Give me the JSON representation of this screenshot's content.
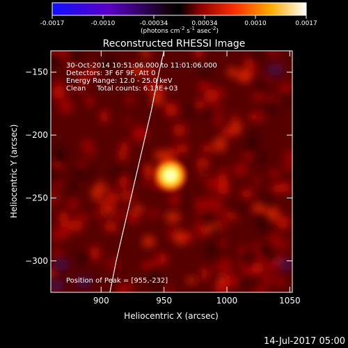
{
  "title": "Reconstructed RHESSI Image",
  "colorbar": {
    "ticks": [
      "-0.0017",
      "-0.0010",
      "-0.00034",
      "0.00034",
      "0.0010",
      "0.0017"
    ],
    "units_html": "(photons cm<tspan baseline-shift='super' font-size='7'>-2</tspan> s<tspan baseline-shift='super' font-size='7'>-1</tspan> asec<tspan baseline-shift='super' font-size='7'>-2</tspan>)"
  },
  "annotations": {
    "time_range": "30-Oct-2014 10:51:06.000 to 11:01:06.000",
    "detectors": "Detectors: 3F 6F 9F, Att 0",
    "energy": "Energy Range: 12.0 - 25.0 keV",
    "method": "Clean     Total counts: 6.13E+03",
    "peak": "Position of Peak = [955,-232]"
  },
  "footer_timestamp": "14-Jul-2017 05:00",
  "chart_data": {
    "type": "heatmap",
    "title": "Reconstructed RHESSI Image",
    "xlabel": "Heliocentric X (arcsec)",
    "ylabel": "Heliocentric Y (arcsec)",
    "xlim": [
      860,
      1052
    ],
    "ylim": [
      -325,
      -133
    ],
    "xticks": [
      900,
      950,
      1000,
      1050
    ],
    "yticks": [
      -150,
      -200,
      -250,
      -300
    ],
    "zlim": [
      -0.0017,
      0.0017
    ],
    "colormap": "heat (blue-black-red-yellow-white)",
    "peak": {
      "x": 955,
      "y": -232
    },
    "limb": [
      [
        907,
        -325
      ],
      [
        912,
        -300
      ],
      [
        919,
        -270
      ],
      [
        926,
        -240
      ],
      [
        933,
        -210
      ],
      [
        940,
        -180
      ],
      [
        946,
        -150
      ],
      [
        950,
        -133
      ]
    ]
  }
}
